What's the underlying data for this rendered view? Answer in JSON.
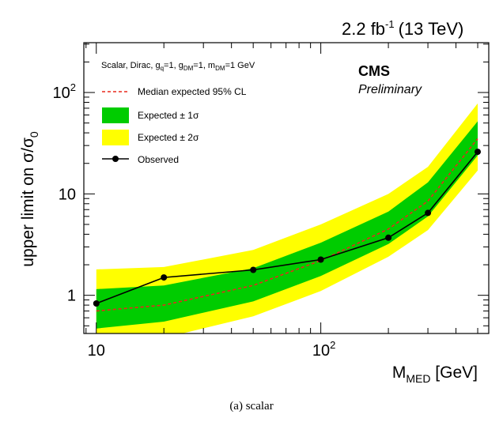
{
  "chart_data": {
    "type": "line",
    "header": {
      "lumi": "2.2 fb",
      "lumi_exp": "-1",
      "energy": "(13 TeV)"
    },
    "experiment": "CMS",
    "status": "Preliminary",
    "model": {
      "pre": "Scalar, Dirac, g",
      "sub1": "q",
      "mid1": "=1, g",
      "sub2": "DM",
      "mid2": "=1, m",
      "sub3": "DM",
      "post": "=1 GeV"
    },
    "xlabel": {
      "main": "M",
      "sub": "MED",
      "unit": " [GeV]"
    },
    "ylabel": {
      "pre": "upper limit on σ/σ",
      "sub": "0"
    },
    "caption": "(a) scalar",
    "x_scale": "log",
    "y_scale": "log",
    "xlim": [
      8.8,
      560
    ],
    "ylim": [
      0.42,
      310
    ],
    "x_ticks": [
      {
        "value": 10,
        "base": "10",
        "exp": ""
      },
      {
        "value": 100,
        "base": "10",
        "exp": "2"
      }
    ],
    "y_ticks": [
      {
        "value": 1,
        "base": "1",
        "exp": ""
      },
      {
        "value": 10,
        "base": "10",
        "exp": ""
      },
      {
        "value": 100,
        "base": "10",
        "exp": "2"
      }
    ],
    "x": [
      10,
      20,
      50,
      100,
      200,
      300,
      500
    ],
    "series": [
      {
        "name": "Median expected 95% CL",
        "values": [
          0.7,
          0.8,
          1.25,
          2.2,
          4.5,
          8.5,
          35
        ],
        "color": "#e8281d",
        "style": "dashed"
      },
      {
        "name": "Expected ± 1σ",
        "low": [
          0.47,
          0.55,
          0.87,
          1.55,
          3.2,
          6.0,
          24
        ],
        "high": [
          1.15,
          1.25,
          1.85,
          3.3,
          6.7,
          13,
          52
        ],
        "color": "#00cc00"
      },
      {
        "name": "Expected ± 2σ",
        "low": [
          0.3,
          0.38,
          0.62,
          1.1,
          2.4,
          4.4,
          17
        ],
        "high": [
          1.8,
          1.9,
          2.8,
          5.0,
          10,
          18.5,
          78
        ],
        "color": "#ffff00"
      },
      {
        "name": "Observed",
        "values": [
          0.83,
          1.5,
          1.78,
          2.25,
          3.7,
          6.5,
          26
        ],
        "color": "#000000",
        "style": "solid-markers"
      }
    ],
    "legend_placement": "top-left"
  }
}
